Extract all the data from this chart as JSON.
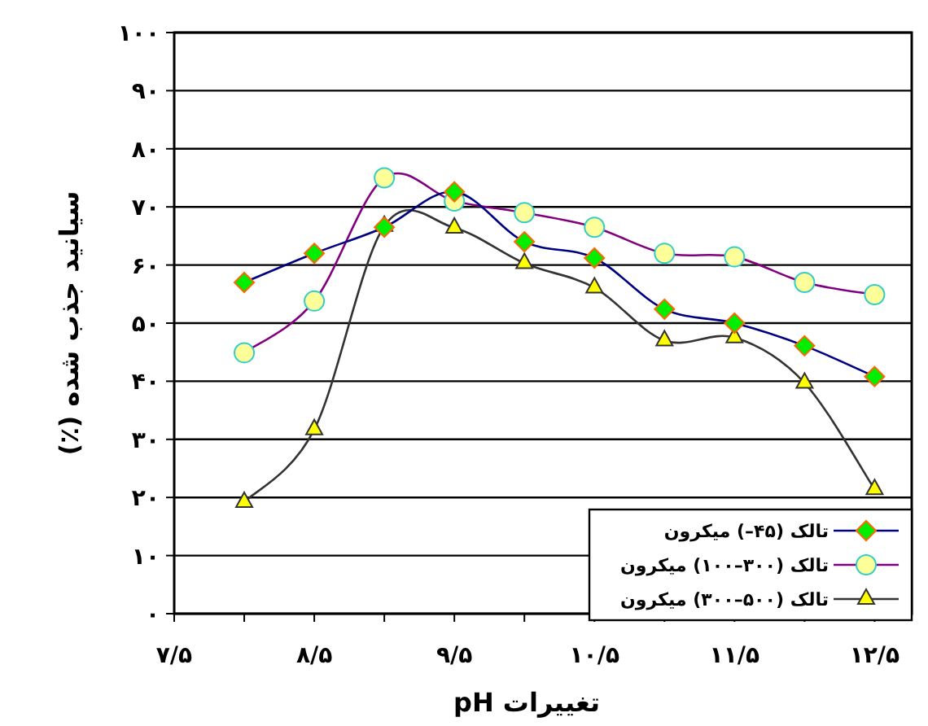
{
  "chart_data": {
    "type": "line",
    "xlabel": "تغییرات pH",
    "ylabel": "سیانید جذب شده (٪)",
    "categories": [
      "۷/۵",
      null,
      "۸/۵",
      null,
      "۹/۵",
      null,
      "۱۰/۵",
      null,
      "۱۱/۵",
      null,
      "۱۲/۵"
    ],
    "ylim": [
      0,
      100
    ],
    "yticks": [
      {
        "value": 0,
        "label": "۰"
      },
      {
        "value": 10,
        "label": "۱۰"
      },
      {
        "value": 20,
        "label": "۲۰"
      },
      {
        "value": 30,
        "label": "۳۰"
      },
      {
        "value": 40,
        "label": "۴۰"
      },
      {
        "value": 50,
        "label": "۵۰"
      },
      {
        "value": 60,
        "label": "۶۰"
      },
      {
        "value": 70,
        "label": "۷۰"
      },
      {
        "value": 80,
        "label": "۸۰"
      },
      {
        "value": 90,
        "label": "۹۰"
      },
      {
        "value": 100,
        "label": "۱۰۰"
      }
    ],
    "grid": "y",
    "legend": "bottom right",
    "series": [
      {
        "name": "تالک (۴۵–) میکرون",
        "color": "#000080",
        "marker": "diamond",
        "values": [
          null,
          57,
          62,
          66.5,
          72.6,
          64,
          61.2,
          52.4,
          50,
          46.1,
          40.8
        ]
      },
      {
        "name": "تالک (۳۰۰–۱۰۰) میکرون",
        "color": "#800080",
        "marker": "circle",
        "values": [
          null,
          44.9,
          53.8,
          75,
          71,
          69,
          66.5,
          62,
          61.4,
          57,
          54.9
        ]
      },
      {
        "name": "تالک (۵۰۰–۳۰۰) میکرون",
        "color": "#333333",
        "marker": "triangle",
        "values": [
          null,
          19.2,
          31.7,
          66.7,
          66.4,
          60.3,
          56.1,
          47,
          47.5,
          39.7,
          21.4
        ]
      }
    ]
  }
}
